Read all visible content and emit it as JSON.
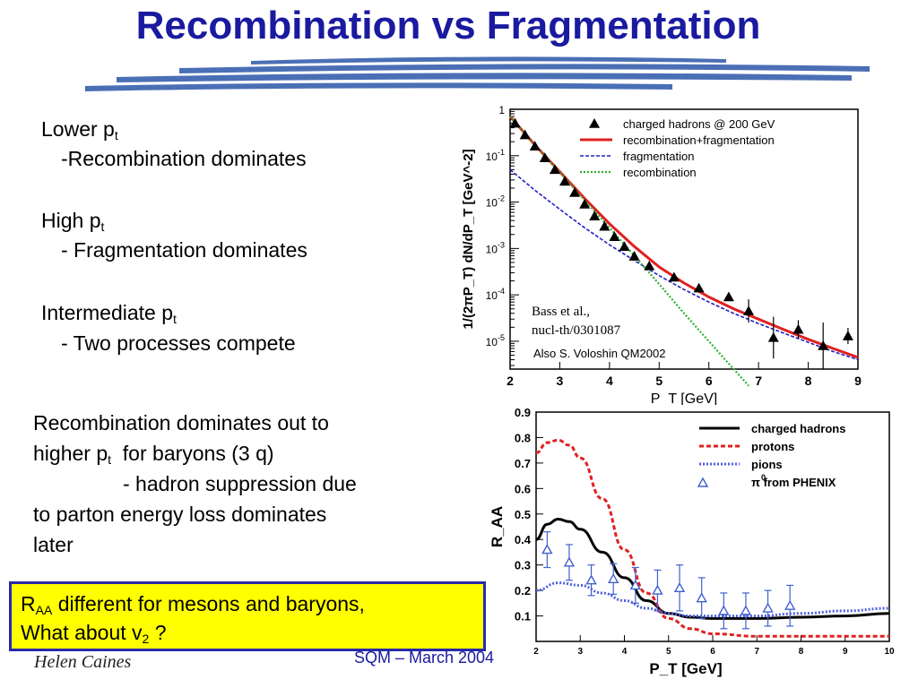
{
  "slide": {
    "title": "Recombination vs Fragmentation",
    "bullets": [
      {
        "lead": "Lower p",
        "sub": "t",
        "detail": "-Recombination  dominates"
      },
      {
        "lead": "High p",
        "sub": "t",
        "detail": "- Fragmentation  dominates"
      },
      {
        "lead": "Intermediate p",
        "sub": "t",
        "detail": "- Two processes compete"
      }
    ],
    "summary": {
      "line1": "Recombination dominates out to",
      "line2a": "higher p",
      "line2sub": "t",
      "line2b": "  for baryons (3 q)",
      "line3": "-  hadron suppression due",
      "line4": "to parton energy loss dominates",
      "line5": "later"
    },
    "highlight": {
      "r": "R",
      "r_sub": "AA",
      "line1": " different for mesons and baryons,",
      "line2a": "What about v",
      "line2sub": "2",
      "line2b": " ?"
    },
    "footer": {
      "author": "Helen Caines",
      "conference": "SQM  – March 2004"
    }
  },
  "colors": {
    "title": "#1a1aa0",
    "swoosh": "#4a6fb5",
    "highlight_bg": "#ffff00",
    "highlight_border": "#2a2aa8",
    "red": "#e02020",
    "blue": "#2020c0",
    "green": "#30b030",
    "triangle_blue": "#4060d0"
  },
  "chart_data": [
    {
      "type": "line",
      "ylabel": "1/(2πP_T) dN/dP_T [GeV^-2]",
      "xlabel": "P_T [GeV]",
      "xlim": [
        2,
        9
      ],
      "ylim_log10": [
        -5.6,
        0
      ],
      "log_y": true,
      "x_ticks": [
        "2",
        "3",
        "4",
        "5",
        "6",
        "7",
        "8",
        "9"
      ],
      "y_ticks": [
        "1",
        "10^-1",
        "10^-2",
        "10^-3",
        "10^-4",
        "10^-5"
      ],
      "legend": [
        "charged  hadrons  @ 200 GeV",
        "recombination+fragmentation",
        "fragmentation",
        "recombination"
      ],
      "annotation_citation1": "Bass et al.,",
      "annotation_citation2": "nucl-th/0301087",
      "annotation_also": "Also S. Voloshin QM2002",
      "series": [
        {
          "name": "charged  hadrons  @ 200 GeV",
          "kind": "markers",
          "points": [
            [
              2.1,
              0.5
            ],
            [
              2.3,
              0.28
            ],
            [
              2.5,
              0.16
            ],
            [
              2.7,
              0.09
            ],
            [
              2.9,
              0.05
            ],
            [
              3.1,
              0.028
            ],
            [
              3.3,
              0.016
            ],
            [
              3.5,
              0.009
            ],
            [
              3.7,
              0.005
            ],
            [
              3.9,
              0.003
            ],
            [
              4.1,
              0.0018
            ],
            [
              4.3,
              0.0011
            ],
            [
              4.5,
              0.00068
            ],
            [
              4.8,
              0.00042
            ],
            [
              5.3,
              0.00024
            ],
            [
              5.8,
              0.00014
            ],
            [
              6.4,
              9e-05
            ],
            [
              6.8,
              4.5e-05
            ],
            [
              7.3,
              1.2e-05
            ],
            [
              7.8,
              1.8e-05
            ],
            [
              8.3,
              8e-06
            ],
            [
              8.8,
              1.3e-05
            ]
          ]
        },
        {
          "name": "recombination+fragmentation",
          "kind": "line",
          "points": [
            [
              2.0,
              0.7
            ],
            [
              2.5,
              0.17
            ],
            [
              3.0,
              0.045
            ],
            [
              3.5,
              0.012
            ],
            [
              4.0,
              0.0034
            ],
            [
              4.5,
              0.0011
            ],
            [
              5.0,
              0.0004
            ],
            [
              5.5,
              0.00018
            ],
            [
              6.0,
              9e-05
            ],
            [
              6.5,
              5e-05
            ],
            [
              7.0,
              3e-05
            ],
            [
              7.5,
              1.8e-05
            ],
            [
              8.0,
              1.1e-05
            ],
            [
              8.5,
              7e-06
            ],
            [
              9.0,
              4.5e-06
            ]
          ]
        },
        {
          "name": "fragmentation",
          "kind": "line",
          "points": [
            [
              2.0,
              0.05
            ],
            [
              2.5,
              0.018
            ],
            [
              3.0,
              0.007
            ],
            [
              3.5,
              0.0028
            ],
            [
              4.0,
              0.0012
            ],
            [
              4.5,
              0.00055
            ],
            [
              5.0,
              0.00026
            ],
            [
              5.5,
              0.00013
            ],
            [
              6.0,
              7e-05
            ],
            [
              6.5,
              4e-05
            ],
            [
              7.0,
              2.4e-05
            ],
            [
              7.5,
              1.5e-05
            ],
            [
              8.0,
              9.5e-06
            ],
            [
              8.5,
              6e-06
            ],
            [
              9.0,
              4e-06
            ]
          ]
        },
        {
          "name": "recombination",
          "kind": "line",
          "points": [
            [
              2.0,
              0.7
            ],
            [
              2.5,
              0.17
            ],
            [
              3.0,
              0.044
            ],
            [
              3.5,
              0.011
            ],
            [
              4.0,
              0.0028
            ],
            [
              4.5,
              0.0007
            ],
            [
              5.0,
              0.00017
            ],
            [
              5.5,
              4e-05
            ],
            [
              6.0,
              1e-05
            ],
            [
              6.5,
              2.5e-06
            ],
            [
              6.8,
              1.1e-06
            ]
          ]
        }
      ]
    },
    {
      "type": "line",
      "ylabel": "R_AA",
      "xlabel": "P_T [GeV]",
      "xlim": [
        2,
        10
      ],
      "ylim": [
        0,
        0.9
      ],
      "x_ticks": [
        "2",
        "3",
        "4",
        "5",
        "6",
        "7",
        "8",
        "9",
        "10"
      ],
      "y_ticks": [
        "0.1",
        "0.2",
        "0.3",
        "0.4",
        "0.5",
        "0.6",
        "0.7",
        "0.8",
        "0.9"
      ],
      "legend": [
        "charged hadrons",
        "protons",
        "pions",
        "π  from PHENIX"
      ],
      "legend_pi_superscript": "0",
      "series": [
        {
          "name": "charged hadrons",
          "kind": "line",
          "points": [
            [
              2.0,
              0.4
            ],
            [
              2.25,
              0.46
            ],
            [
              2.5,
              0.48
            ],
            [
              2.75,
              0.47
            ],
            [
              3.0,
              0.44
            ],
            [
              3.5,
              0.35
            ],
            [
              4.0,
              0.25
            ],
            [
              4.5,
              0.16
            ],
            [
              5.0,
              0.11
            ],
            [
              5.5,
              0.095
            ],
            [
              6.0,
              0.09
            ],
            [
              7.0,
              0.09
            ],
            [
              8.0,
              0.095
            ],
            [
              9.0,
              0.1
            ],
            [
              10.0,
              0.11
            ]
          ]
        },
        {
          "name": "protons",
          "kind": "line",
          "points": [
            [
              2.0,
              0.74
            ],
            [
              2.25,
              0.78
            ],
            [
              2.5,
              0.79
            ],
            [
              2.75,
              0.77
            ],
            [
              3.0,
              0.72
            ],
            [
              3.5,
              0.56
            ],
            [
              4.0,
              0.36
            ],
            [
              4.5,
              0.19
            ],
            [
              5.0,
              0.09
            ],
            [
              5.5,
              0.05
            ],
            [
              6.0,
              0.03
            ],
            [
              7.0,
              0.02
            ],
            [
              8.0,
              0.02
            ],
            [
              9.0,
              0.02
            ],
            [
              10.0,
              0.02
            ]
          ]
        },
        {
          "name": "pions",
          "kind": "line",
          "points": [
            [
              2.0,
              0.2
            ],
            [
              2.5,
              0.23
            ],
            [
              3.0,
              0.22
            ],
            [
              3.5,
              0.19
            ],
            [
              4.0,
              0.16
            ],
            [
              4.5,
              0.13
            ],
            [
              5.0,
              0.11
            ],
            [
              5.5,
              0.1
            ],
            [
              6.0,
              0.1
            ],
            [
              7.0,
              0.1
            ],
            [
              8.0,
              0.11
            ],
            [
              9.0,
              0.12
            ],
            [
              10.0,
              0.13
            ]
          ]
        },
        {
          "name": "π  from PHENIX",
          "kind": "markers",
          "points": [
            [
              2.25,
              0.36
            ],
            [
              2.75,
              0.31
            ],
            [
              3.25,
              0.24
            ],
            [
              3.75,
              0.245
            ],
            [
              4.25,
              0.22
            ],
            [
              4.75,
              0.2
            ],
            [
              5.25,
              0.21
            ],
            [
              5.75,
              0.17
            ],
            [
              6.25,
              0.12
            ],
            [
              6.75,
              0.12
            ],
            [
              7.25,
              0.13
            ],
            [
              7.75,
              0.14
            ]
          ],
          "errors": [
            0.07,
            0.07,
            0.06,
            0.06,
            0.07,
            0.08,
            0.09,
            0.08,
            0.07,
            0.07,
            0.07,
            0.08
          ]
        }
      ]
    }
  ]
}
